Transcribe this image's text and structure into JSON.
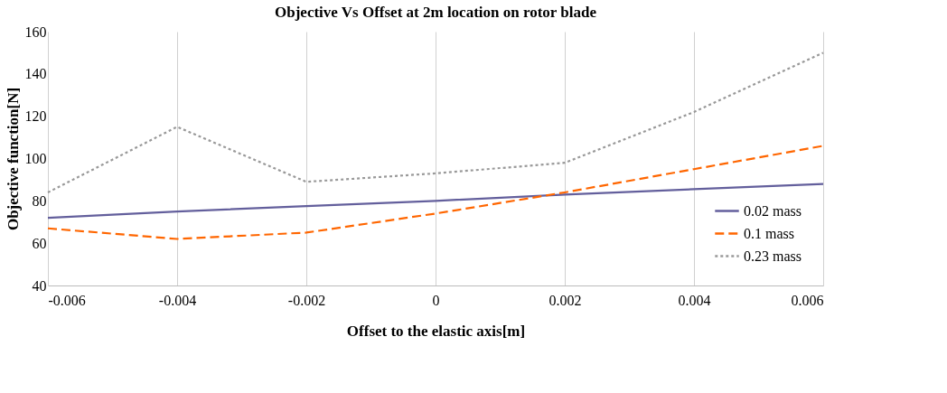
{
  "chart_data": {
    "type": "line",
    "title": "Objective Vs Offset at 2m location on rotor blade",
    "xlabel": "Offset to the elastic axis[m]",
    "ylabel": "Objective function[N]",
    "x": [
      -0.006,
      -0.004,
      -0.002,
      0,
      0.002,
      0.004,
      0.006
    ],
    "series": [
      {
        "name": "0.02 mass",
        "color": "#635f9c",
        "line_style": "solid",
        "values": [
          72,
          75,
          77.5,
          80,
          83,
          85.5,
          88
        ]
      },
      {
        "name": "0.1 mass",
        "color": "#ff6600",
        "line_style": "dashed",
        "values": [
          67,
          62,
          65,
          74,
          84,
          95,
          106
        ]
      },
      {
        "name": "0.23 mass",
        "color": "#999999",
        "line_style": "dotted",
        "values": [
          84,
          115,
          89,
          93,
          98,
          122,
          150
        ]
      }
    ],
    "xlim": [
      -0.006,
      0.006
    ],
    "xticks": [
      -0.006,
      -0.004,
      -0.002,
      0,
      0.002,
      0.004,
      0.006
    ],
    "ylim": [
      40,
      160
    ],
    "yticks": [
      40,
      60,
      80,
      100,
      120,
      140,
      160
    ],
    "grid": "x",
    "legend": "bottom right",
    "marker": "none"
  }
}
